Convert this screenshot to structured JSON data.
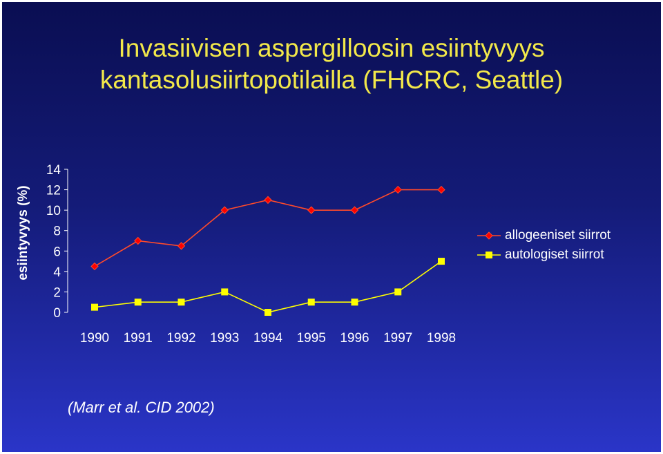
{
  "title": {
    "line1": "Invasiivisen aspergilloosin esiintyvyys",
    "line2": "kantasolusiirtopotilailla (FHCRC, Seattle)"
  },
  "source": "(Marr et al. CID 2002)",
  "colors": {
    "background_top": "#0a0e52",
    "background_bottom": "#2a35c8",
    "title": "#f2e84a",
    "text": "#ffffff",
    "series_allo_line": "#ff4a2a",
    "series_allo_marker": "#ff0000",
    "series_auto": "#ffff00"
  },
  "chart_data": {
    "type": "line",
    "title": "Invasiivisen aspergilloosin esiintyvyys kantasolusiirtopotilailla (FHCRC, Seattle)",
    "xlabel": "",
    "ylabel": "esiintyvyys (%)",
    "categories": [
      "1990",
      "1991",
      "1992",
      "1993",
      "1994",
      "1995",
      "1996",
      "1997",
      "1998"
    ],
    "ylim": [
      0,
      14
    ],
    "yticks": [
      0,
      2,
      4,
      6,
      8,
      10,
      12,
      14
    ],
    "grid": false,
    "legend_position": "right",
    "series": [
      {
        "name": "allogeeniset siirrot",
        "marker": "diamond",
        "values": [
          4.5,
          7,
          6.5,
          10,
          11,
          10,
          10,
          12,
          12
        ]
      },
      {
        "name": "autologiset siirrot",
        "marker": "square",
        "values": [
          0.5,
          1,
          1,
          2,
          0,
          1,
          1,
          2,
          5
        ]
      }
    ]
  }
}
